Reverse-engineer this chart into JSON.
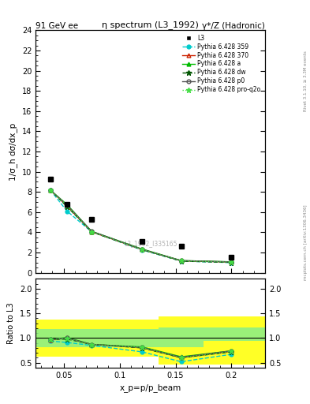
{
  "title": "η spectrum (L3_1992)",
  "header_left": "91 GeV ee",
  "header_right": "γ*/Z (Hadronic)",
  "right_label_top": "Rivet 3.1.10, ≥ 3.3M events",
  "right_label_bottom": "mcplots.cern.ch [arXiv:1306.3436]",
  "watermark": "L3_1992_I335165",
  "ylabel_main": "1/σ_h dσ/dx_p",
  "ylabel_ratio": "Ratio to L3",
  "xlabel": "x_p=p/p_beam",
  "xp_values": [
    0.038,
    0.053,
    0.075,
    0.12,
    0.155,
    0.2
  ],
  "data_L3": [
    9.3,
    6.75,
    5.3,
    3.1,
    2.6,
    1.5
  ],
  "data_359": [
    8.2,
    6.1,
    4.05,
    2.25,
    1.15,
    1.0
  ],
  "data_370": [
    8.2,
    6.6,
    4.05,
    2.3,
    1.18,
    1.05
  ],
  "data_a": [
    8.2,
    6.75,
    4.1,
    2.35,
    1.2,
    1.08
  ],
  "data_dw": [
    8.2,
    6.55,
    4.05,
    2.3,
    1.15,
    1.02
  ],
  "data_p0": [
    8.2,
    6.7,
    4.1,
    2.32,
    1.2,
    1.07
  ],
  "data_proq2o": [
    8.2,
    6.65,
    4.05,
    2.3,
    1.18,
    1.05
  ],
  "ratio_359": [
    0.94,
    0.91,
    0.85,
    0.72,
    0.52,
    0.67
  ],
  "ratio_370": [
    0.96,
    1.0,
    0.87,
    0.81,
    0.6,
    0.73
  ],
  "ratio_a": [
    0.97,
    1.01,
    0.87,
    0.82,
    0.62,
    0.74
  ],
  "ratio_dw": [
    0.97,
    0.98,
    0.87,
    0.8,
    0.6,
    0.72
  ],
  "ratio_p0": [
    0.97,
    1.0,
    0.87,
    0.81,
    0.61,
    0.74
  ],
  "ratio_proq2o": [
    0.97,
    0.99,
    0.87,
    0.81,
    0.6,
    0.73
  ],
  "ylim_main": [
    0,
    24
  ],
  "ylim_ratio": [
    0.4,
    2.2
  ],
  "yticks_main": [
    0,
    2,
    4,
    6,
    8,
    10,
    12,
    14,
    16,
    18,
    20,
    22,
    24
  ],
  "yticks_ratio": [
    0.5,
    1.0,
    1.5,
    2.0
  ],
  "xlim": [
    0.025,
    0.23
  ],
  "xticks": [
    0.05,
    0.1,
    0.15,
    0.2
  ],
  "xticklabels": [
    "0.05",
    "0.1",
    "0.15",
    "0.2"
  ],
  "color_359": "#00CCCC",
  "color_370": "#CC2200",
  "color_a": "#00BB00",
  "color_dw": "#005500",
  "color_p0": "#555555",
  "color_proq2o": "#44DD44",
  "band_edges": [
    0.025,
    0.044,
    0.063,
    0.095,
    0.135,
    0.175,
    0.23
  ],
  "band_yellow_lo": [
    0.62,
    0.62,
    0.62,
    0.62,
    0.47,
    0.47
  ],
  "band_yellow_hi": [
    1.38,
    1.38,
    1.38,
    1.38,
    1.43,
    1.43
  ],
  "band_green_lo": [
    0.82,
    0.82,
    0.82,
    0.82,
    0.82,
    0.95
  ],
  "band_green_hi": [
    1.18,
    1.18,
    1.18,
    1.18,
    1.22,
    1.22
  ]
}
